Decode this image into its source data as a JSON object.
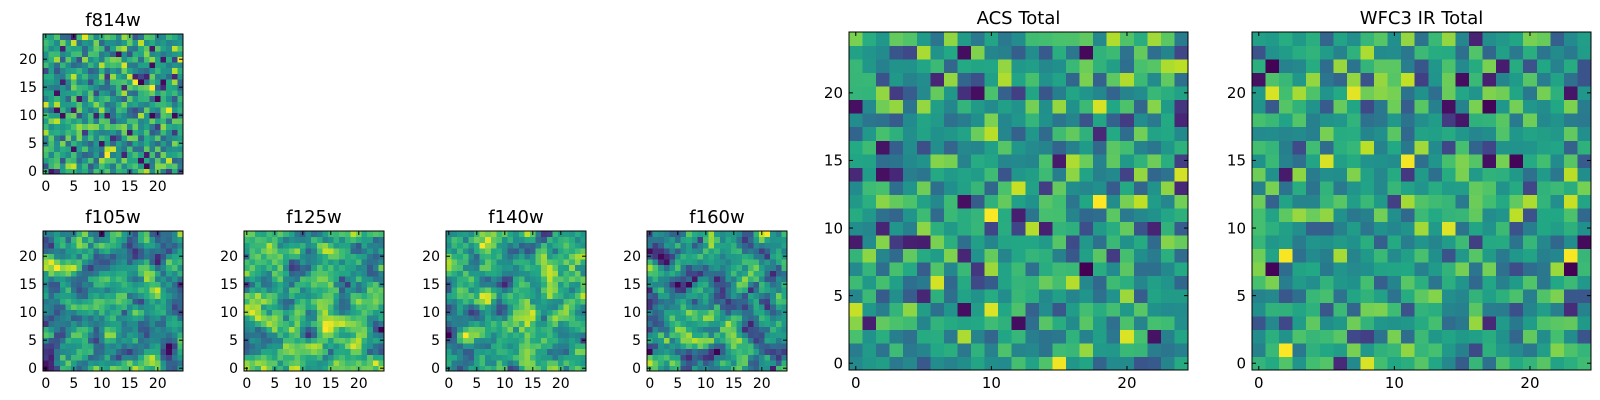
{
  "chart_data": [
    {
      "type": "heatmap",
      "title": "f814w",
      "colormap": "viridis",
      "grid_size": 25,
      "xlim": [
        0,
        25
      ],
      "ylim": [
        0,
        25
      ],
      "xticks": [
        "0",
        "5",
        "10",
        "15",
        "20"
      ],
      "yticks": [
        "0",
        "5",
        "10",
        "15",
        "20"
      ],
      "smoothing": 0,
      "seed": 814
    },
    {
      "type": "heatmap",
      "title": "f105w",
      "colormap": "viridis",
      "grid_size": 25,
      "xlim": [
        0,
        25
      ],
      "ylim": [
        0,
        25
      ],
      "xticks": [
        "0",
        "5",
        "10",
        "15",
        "20"
      ],
      "yticks": [
        "0",
        "5",
        "10",
        "15",
        "20"
      ],
      "smoothing": 1,
      "seed": 105
    },
    {
      "type": "heatmap",
      "title": "f125w",
      "colormap": "viridis",
      "grid_size": 25,
      "xlim": [
        0,
        25
      ],
      "ylim": [
        0,
        25
      ],
      "xticks": [
        "0",
        "5",
        "10",
        "15",
        "20"
      ],
      "yticks": [
        "0",
        "5",
        "10",
        "15",
        "20"
      ],
      "smoothing": 1,
      "seed": 125
    },
    {
      "type": "heatmap",
      "title": "f140w",
      "colormap": "viridis",
      "grid_size": 25,
      "xlim": [
        0,
        25
      ],
      "ylim": [
        0,
        25
      ],
      "xticks": [
        "0",
        "5",
        "10",
        "15",
        "20"
      ],
      "yticks": [
        "0",
        "5",
        "10",
        "15",
        "20"
      ],
      "smoothing": 1,
      "seed": 140
    },
    {
      "type": "heatmap",
      "title": "f160w",
      "colormap": "viridis",
      "grid_size": 25,
      "xlim": [
        0,
        25
      ],
      "ylim": [
        0,
        25
      ],
      "xticks": [
        "0",
        "5",
        "10",
        "15",
        "20"
      ],
      "yticks": [
        "0",
        "5",
        "10",
        "15",
        "20"
      ],
      "smoothing": 1,
      "seed": 160
    },
    {
      "type": "heatmap",
      "title": "ACS Total",
      "colormap": "viridis",
      "grid_size": 25,
      "xlim": [
        0,
        25
      ],
      "ylim": [
        0,
        25
      ],
      "xticks": [
        "0",
        "10",
        "20"
      ],
      "yticks": [
        "0",
        "5",
        "10",
        "15",
        "20"
      ],
      "smoothing": 0,
      "seed": 901
    },
    {
      "type": "heatmap",
      "title": "WFC3 IR Total",
      "colormap": "viridis",
      "grid_size": 25,
      "xlim": [
        0,
        25
      ],
      "ylim": [
        0,
        25
      ],
      "xticks": [
        "0",
        "10",
        "20"
      ],
      "yticks": [
        "0",
        "5",
        "10",
        "15",
        "20"
      ],
      "smoothing": 0,
      "seed": 902
    }
  ]
}
